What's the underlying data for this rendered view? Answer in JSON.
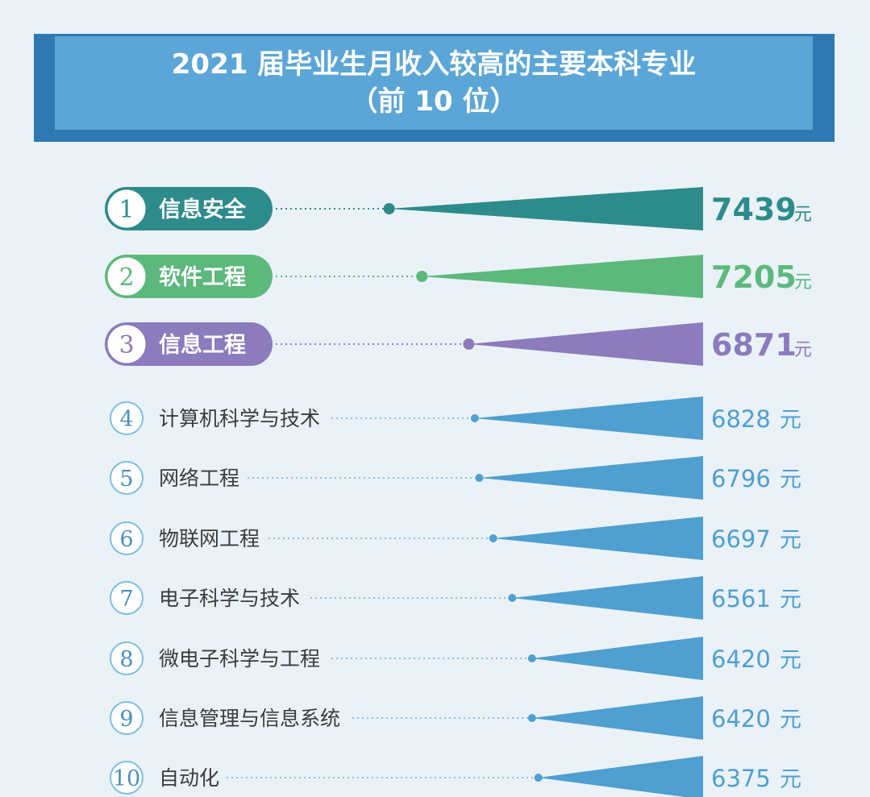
{
  "header": {
    "title": "2021 届毕业生月收入较高的主要本科专业",
    "subtitle": "（前 10 位）"
  },
  "chart_data": {
    "type": "bar",
    "title": "2021 届毕业生月收入较高的主要本科专业",
    "subtitle": "（前 10 位）",
    "unit": "元",
    "categories": [
      "信息安全",
      "软件工程",
      "信息工程",
      "计算机科学与技术",
      "网络工程",
      "物联网工程",
      "电子科学与技术",
      "微电子科学与工程",
      "信息管理与信息系统",
      "自动化"
    ],
    "ranks": [
      "1",
      "2",
      "3",
      "4",
      "5",
      "6",
      "7",
      "8",
      "9",
      "10"
    ],
    "values": [
      7439,
      7205,
      6871,
      6828,
      6796,
      6697,
      6561,
      6420,
      6420,
      6375
    ],
    "value_labels": [
      "7439",
      "7205",
      "6871",
      "6828",
      "6796",
      "6697",
      "6561",
      "6420",
      "6420",
      "6375"
    ],
    "colors": [
      "#2e8b8b",
      "#5db87c",
      "#8c7bbd",
      "#4f9fd0",
      "#4f9fd0",
      "#4f9fd0",
      "#4f9fd0",
      "#4f9fd0",
      "#4f9fd0",
      "#4f9fd0"
    ],
    "highlight_count": 3,
    "xlim": [
      5200,
      7500
    ]
  }
}
